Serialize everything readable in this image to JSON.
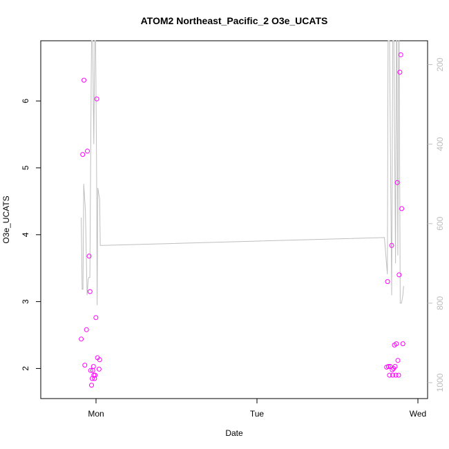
{
  "chart_data": {
    "type": "scatter",
    "title": "ATOM2 Northeast_Pacific_2 O3e_UCATS",
    "xlabel": "Date",
    "ylabel": "O3e_UCATS",
    "x_ticks": [
      "Mon",
      "Tue",
      "Wed"
    ],
    "y_ticks": [
      2,
      3,
      4,
      5,
      6
    ],
    "ylim": [
      1.55,
      6.9
    ],
    "secondary_axis": {
      "ticks": [
        200,
        400,
        600,
        800,
        1000
      ],
      "ylim_top": 140,
      "ylim_bottom": 1040,
      "reversed": true
    },
    "colors": {
      "points": "#ff00ff",
      "line": "#bebebe",
      "secondary_ticks": "#bdbdbd"
    },
    "series": [
      {
        "marker": "open-circle",
        "axis": "left",
        "points": [
          {
            "x": "Sun 21:48",
            "y": 2.44
          },
          {
            "x": "Sun 22:01",
            "y": 5.2
          },
          {
            "x": "Sun 22:12",
            "y": 6.31
          },
          {
            "x": "Sun 22:20",
            "y": 2.05
          },
          {
            "x": "Sun 22:35",
            "y": 2.58
          },
          {
            "x": "Sun 22:43",
            "y": 5.25
          },
          {
            "x": "Sun 22:58",
            "y": 3.68
          },
          {
            "x": "Sun 23:06",
            "y": 3.15
          },
          {
            "x": "Sun 23:12",
            "y": 1.97
          },
          {
            "x": "Sun 23:20",
            "y": 1.75
          },
          {
            "x": "Sun 23:26",
            "y": 1.85
          },
          {
            "x": "Sun 23:31",
            "y": 1.97
          },
          {
            "x": "Sun 23:37",
            "y": 2.03
          },
          {
            "x": "Sun 23:40",
            "y": 1.9
          },
          {
            "x": "Sun 23:47",
            "y": 1.85
          },
          {
            "x": "Sun 23:52",
            "y": 1.9
          },
          {
            "x": "Sun 23:59",
            "y": 2.76
          },
          {
            "x": "Mon 00:07",
            "y": 6.03
          },
          {
            "x": "Mon 00:13",
            "y": 2.16
          },
          {
            "x": "Mon 00:27",
            "y": 1.99
          },
          {
            "x": "Mon 00:33",
            "y": 2.13
          },
          {
            "x": "Tue 19:20",
            "y": 2.02
          },
          {
            "x": "Tue 19:28",
            "y": 3.3
          },
          {
            "x": "Tue 19:36",
            "y": 2.03
          },
          {
            "x": "Tue 19:46",
            "y": 1.9
          },
          {
            "x": "Tue 19:52",
            "y": 2.03
          },
          {
            "x": "Tue 20:05",
            "y": 3.84
          },
          {
            "x": "Tue 20:10",
            "y": 1.98
          },
          {
            "x": "Tue 20:15",
            "y": 1.9
          },
          {
            "x": "Tue 20:22",
            "y": 2.0
          },
          {
            "x": "Tue 20:30",
            "y": 2.35
          },
          {
            "x": "Tue 20:36",
            "y": 2.03
          },
          {
            "x": "Tue 20:42",
            "y": 1.9
          },
          {
            "x": "Tue 20:48",
            "y": 2.37
          },
          {
            "x": "Tue 20:55",
            "y": 4.78
          },
          {
            "x": "Tue 21:01",
            "y": 2.12
          },
          {
            "x": "Tue 21:07",
            "y": 1.9
          },
          {
            "x": "Tue 21:12",
            "y": 3.4
          },
          {
            "x": "Tue 21:19",
            "y": 6.43
          },
          {
            "x": "Tue 21:27",
            "y": 6.69
          },
          {
            "x": "Tue 21:35",
            "y": 4.39
          },
          {
            "x": "Tue 21:45",
            "y": 2.37
          }
        ]
      },
      {
        "marker": "line",
        "axis": "right",
        "points": [
          {
            "x": "Sun 21:48",
            "y": 585
          },
          {
            "x": "Sun 21:52",
            "y": 670
          },
          {
            "x": "Sun 21:56",
            "y": 765
          },
          {
            "x": "Sun 22:03",
            "y": 765
          },
          {
            "x": "Sun 22:10",
            "y": 500
          },
          {
            "x": "Sun 22:25",
            "y": 565
          },
          {
            "x": "Sun 22:40",
            "y": 780
          },
          {
            "x": "Sun 22:50",
            "y": 740
          },
          {
            "x": "Sun 22:57",
            "y": 735
          },
          {
            "x": "Sun 23:05",
            "y": 735
          },
          {
            "x": "Sun 23:15",
            "y": 320
          },
          {
            "x": "Sun 23:20",
            "y": 140
          },
          {
            "x": "Sun 23:30",
            "y": 140
          },
          {
            "x": "Sun 23:40",
            "y": 400
          },
          {
            "x": "Sun 23:48",
            "y": 140
          },
          {
            "x": "Sun 23:56",
            "y": 140
          },
          {
            "x": "Mon 00:05",
            "y": 450
          },
          {
            "x": "Mon 00:10",
            "y": 805
          },
          {
            "x": "Mon 00:16",
            "y": 510
          },
          {
            "x": "Mon 00:27",
            "y": 530
          },
          {
            "x": "Mon 00:33",
            "y": 540
          },
          {
            "x": "Mon 00:38",
            "y": 655
          },
          {
            "x": "Tue 19:00",
            "y": 635
          },
          {
            "x": "Tue 19:27",
            "y": 727
          },
          {
            "x": "Tue 19:33",
            "y": 140
          },
          {
            "x": "Tue 19:46",
            "y": 140
          },
          {
            "x": "Tue 20:05",
            "y": 780
          },
          {
            "x": "Tue 20:15",
            "y": 140
          },
          {
            "x": "Tue 20:25",
            "y": 140
          },
          {
            "x": "Tue 20:40",
            "y": 700
          },
          {
            "x": "Tue 20:48",
            "y": 140
          },
          {
            "x": "Tue 20:52",
            "y": 140
          },
          {
            "x": "Tue 21:00",
            "y": 680
          },
          {
            "x": "Tue 21:08",
            "y": 140
          },
          {
            "x": "Tue 21:12",
            "y": 140
          },
          {
            "x": "Tue 21:22",
            "y": 800
          },
          {
            "x": "Tue 21:33",
            "y": 800
          },
          {
            "x": "Tue 21:45",
            "y": 780
          },
          {
            "x": "Tue 21:52",
            "y": 757
          }
        ]
      }
    ]
  }
}
